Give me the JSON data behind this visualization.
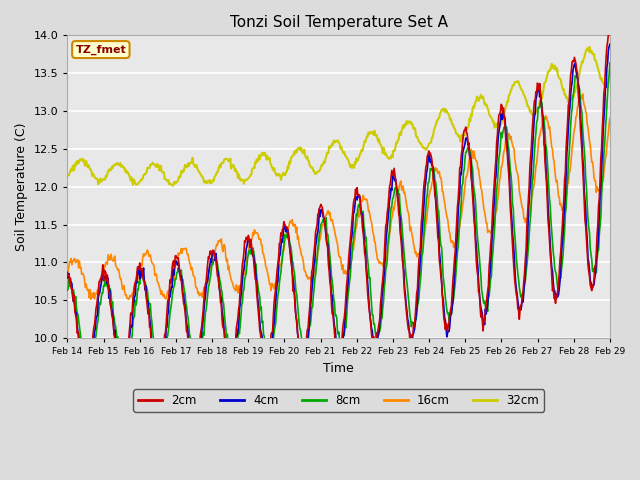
{
  "title": "Tonzi Soil Temperature Set A",
  "xlabel": "Time",
  "ylabel": "Soil Temperature (C)",
  "ylim": [
    10.0,
    14.0
  ],
  "annotation": "TZ_fmet",
  "fig_bg_color": "#dcdcdc",
  "plot_bg_color": "#e8e8e8",
  "grid_color": "white",
  "series": {
    "2cm": {
      "color": "#cc0000",
      "lw": 1.2
    },
    "4cm": {
      "color": "#0000cc",
      "lw": 1.2
    },
    "8cm": {
      "color": "#00aa00",
      "lw": 1.2
    },
    "16cm": {
      "color": "#ff8800",
      "lw": 1.2
    },
    "32cm": {
      "color": "#cccc00",
      "lw": 1.5
    }
  },
  "xtick_labels": [
    "Feb 14",
    "Feb 15",
    "Feb 16",
    "Feb 17",
    "Feb 18",
    "Feb 19",
    "Feb 20",
    "Feb 21",
    "Feb 22",
    "Feb 23",
    "Feb 24",
    "Feb 25",
    "Feb 26",
    "Feb 27",
    "Feb 28",
    "Feb 29"
  ],
  "legend_entries": [
    "2cm",
    "4cm",
    "8cm",
    "16cm",
    "32cm"
  ]
}
